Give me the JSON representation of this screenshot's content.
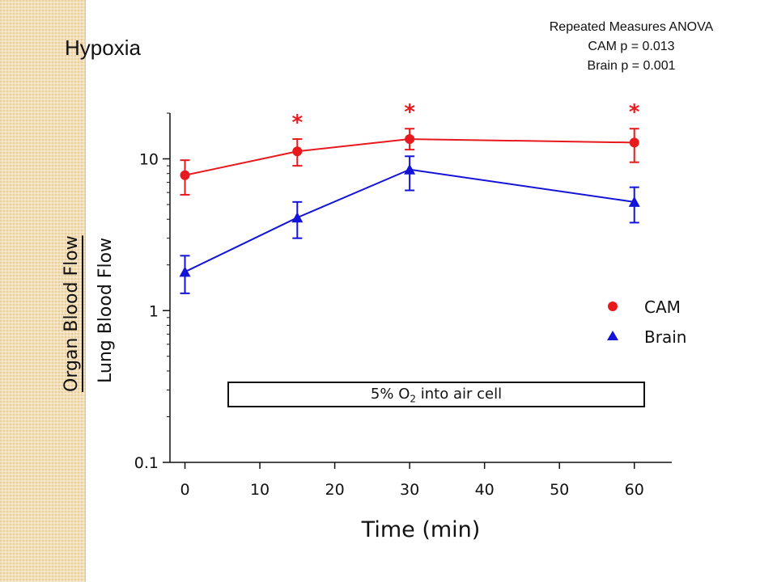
{
  "slide": {
    "title": "Hypoxia",
    "stats_lines": [
      "Repeated Measures ANOVA",
      "CAM p = 0.013",
      "Brain p = 0.001"
    ]
  },
  "chart_data": {
    "type": "line",
    "x": [
      0,
      15,
      30,
      60
    ],
    "xlabel": "Time (min)",
    "ylabel_numerator": "Organ Blood Flow",
    "ylabel_denominator": "Lung Blood Flow",
    "xlim": [
      -2,
      65
    ],
    "ylim": [
      0.1,
      20
    ],
    "y_scale": "log",
    "x_ticks": [
      0,
      10,
      20,
      30,
      40,
      50,
      60
    ],
    "y_major_ticks": [
      0.1,
      1,
      10
    ],
    "y_tick_labels": [
      "0.1",
      "1",
      "10"
    ],
    "series": [
      {
        "name": "CAM",
        "color": "#e8191d",
        "marker": "circle",
        "values": [
          7.8,
          11.2,
          13.5,
          12.8
        ],
        "err_low": [
          5.8,
          9.0,
          11.5,
          9.5
        ],
        "err_high": [
          9.8,
          13.5,
          15.8,
          15.8
        ]
      },
      {
        "name": "Brain",
        "color": "#1414d8",
        "marker": "triangle",
        "values": [
          1.8,
          4.1,
          8.5,
          5.2
        ],
        "err_low": [
          1.3,
          3.0,
          6.2,
          3.8
        ],
        "err_high": [
          2.3,
          5.2,
          10.4,
          6.5
        ]
      }
    ],
    "significance_markers": [
      {
        "x": 15,
        "label": "*"
      },
      {
        "x": 30,
        "label": "*"
      },
      {
        "x": 60,
        "label": "*"
      }
    ],
    "annotation": {
      "text_before": "5% O",
      "subscript": "2",
      "text_after": " into air cell"
    },
    "legend_position": "right",
    "grid": false
  }
}
